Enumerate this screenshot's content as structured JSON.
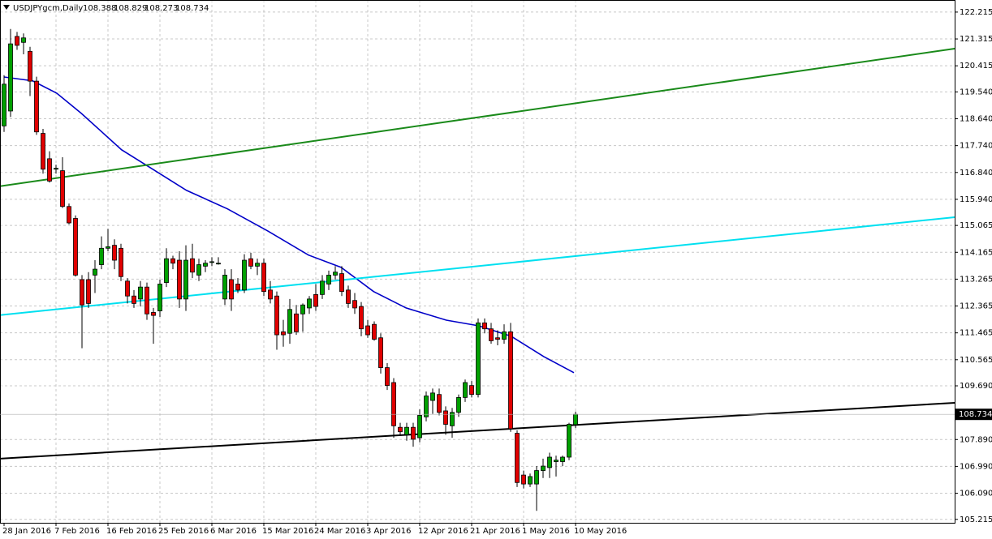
{
  "chart_data": {
    "type": "candlestick",
    "title": "USDJPYgcm,Daily",
    "categories": [
      "28 Jan 2016",
      null,
      null,
      null,
      null,
      null,
      null,
      null,
      "7 Feb 2016",
      null,
      null,
      null,
      null,
      null,
      null,
      null,
      "16 Feb 2016",
      null,
      null,
      null,
      null,
      null,
      null,
      null,
      "25 Feb 2016",
      null,
      null,
      null,
      null,
      null,
      null,
      null,
      "6 Mar 2016",
      null,
      null,
      null,
      null,
      null,
      null,
      null,
      "15 Mar 2016",
      null,
      null,
      null,
      null,
      null,
      null,
      null,
      "24 Mar 2016",
      null,
      null,
      null,
      null,
      null,
      null,
      null,
      "3 Apr 2016",
      null,
      null,
      null,
      null,
      null,
      null,
      null,
      "12 Apr 2016",
      null,
      null,
      null,
      null,
      null,
      null,
      null,
      "21 Apr 2016",
      null,
      null,
      null,
      null,
      null,
      null,
      null,
      "1 May 2016",
      null,
      null,
      null,
      null,
      null,
      null,
      null,
      "10 May 2016"
    ],
    "open": [
      118.4,
      118.9,
      121.4,
      121.2,
      120.9,
      119.9,
      118.15,
      117.3,
      116.95,
      116.9,
      115.7,
      115.3,
      113.25,
      113.25,
      113.4,
      113.75,
      114.3,
      114.4,
      114.3,
      113.2,
      112.7,
      112.6,
      113.0,
      112.15,
      112.2,
      113.15,
      113.95,
      113.9,
      112.6,
      113.95,
      113.4,
      113.7,
      113.85,
      113.8,
      112.6,
      113.25,
      113.1,
      112.9,
      113.95,
      113.7,
      113.8,
      112.9,
      112.7,
      111.5,
      111.45,
      112.1,
      112.1,
      112.3,
      112.75,
      112.75,
      113.1,
      113.4,
      113.45,
      112.9,
      112.55,
      112.35,
      111.7,
      111.75,
      111.3,
      110.3,
      109.8,
      108.3,
      108.05,
      108.3,
      107.95,
      108.65,
      109.2,
      109.4,
      108.85,
      108.35,
      108.8,
      109.3,
      109.7,
      109.4,
      111.8,
      111.6,
      111.3,
      111.25,
      111.5,
      108.1,
      106.7,
      106.4,
      106.4,
      106.85,
      106.95,
      107.15,
      107.15,
      107.3,
      108.388
    ],
    "high": [
      120.1,
      121.65,
      121.55,
      121.5,
      121.05,
      120.05,
      118.3,
      117.55,
      117.1,
      117.35,
      115.8,
      115.4,
      113.4,
      113.5,
      113.9,
      114.7,
      114.95,
      114.6,
      114.45,
      113.3,
      112.9,
      113.2,
      113.15,
      112.3,
      113.25,
      114.3,
      114.05,
      114.2,
      114.4,
      114.45,
      113.95,
      113.9,
      114.0,
      114.0,
      113.6,
      113.6,
      113.3,
      114.1,
      114.15,
      113.95,
      113.95,
      113.2,
      112.85,
      111.9,
      112.6,
      112.4,
      112.45,
      112.7,
      113.1,
      113.4,
      113.55,
      113.7,
      113.7,
      113.05,
      112.8,
      112.5,
      111.9,
      111.85,
      111.45,
      110.45,
      109.95,
      108.45,
      108.45,
      108.45,
      108.9,
      109.5,
      109.6,
      109.6,
      109.0,
      108.95,
      109.4,
      109.9,
      109.85,
      111.95,
      111.95,
      111.8,
      111.55,
      111.75,
      111.8,
      108.2,
      106.85,
      106.75,
      107.0,
      107.25,
      107.45,
      107.35,
      107.35,
      108.45,
      108.829
    ],
    "low": [
      118.2,
      118.7,
      120.95,
      120.8,
      119.4,
      118.1,
      116.8,
      116.5,
      116.8,
      115.65,
      115.1,
      113.35,
      110.95,
      112.3,
      112.8,
      113.6,
      114.2,
      113.6,
      113.2,
      112.45,
      112.3,
      112.35,
      111.9,
      111.1,
      112.0,
      113.0,
      113.6,
      112.3,
      112.2,
      113.3,
      113.2,
      113.5,
      113.7,
      113.75,
      112.4,
      112.2,
      112.8,
      112.8,
      113.6,
      113.4,
      112.7,
      112.45,
      110.9,
      111.0,
      111.1,
      111.4,
      111.5,
      112.1,
      112.2,
      112.6,
      112.9,
      113.25,
      112.7,
      112.3,
      112.1,
      111.35,
      111.3,
      111.2,
      110.1,
      109.55,
      107.95,
      108.05,
      107.85,
      107.65,
      107.8,
      108.5,
      108.75,
      108.7,
      108.05,
      107.95,
      108.65,
      109.15,
      109.3,
      109.3,
      111.45,
      111.1,
      111.05,
      111.1,
      108.15,
      106.3,
      106.25,
      106.3,
      105.5,
      106.6,
      106.6,
      106.65,
      107.0,
      107.2,
      108.273
    ],
    "close": [
      119.8,
      121.15,
      121.1,
      121.35,
      119.9,
      118.2,
      116.95,
      116.55,
      116.98,
      115.7,
      115.15,
      113.4,
      112.4,
      112.45,
      113.6,
      114.3,
      114.35,
      113.9,
      113.35,
      112.7,
      112.45,
      113.0,
      112.1,
      112.05,
      113.1,
      113.95,
      113.8,
      112.6,
      113.9,
      113.5,
      113.75,
      113.8,
      113.85,
      113.8,
      113.4,
      112.6,
      112.9,
      113.9,
      113.7,
      113.8,
      112.85,
      112.6,
      111.4,
      111.4,
      112.25,
      111.5,
      112.4,
      112.6,
      112.35,
      113.2,
      113.4,
      113.5,
      112.85,
      112.45,
      112.3,
      111.6,
      111.4,
      111.25,
      110.3,
      109.7,
      108.35,
      108.15,
      108.3,
      107.9,
      108.7,
      109.35,
      109.45,
      108.8,
      108.4,
      108.8,
      109.3,
      109.8,
      109.4,
      111.8,
      111.6,
      111.2,
      111.25,
      111.5,
      108.25,
      106.45,
      106.4,
      106.65,
      106.85,
      107.0,
      107.3,
      107.2,
      107.3,
      108.4,
      108.734
    ],
    "up_color": "#00a000",
    "down_color": "#e00000",
    "ylim": [
      105.1,
      122.62
    ],
    "yticks": [
      122.215,
      121.315,
      120.415,
      {
        "value": 119.54,
        "label": "119.540"
      },
      {
        "value": 118.64,
        "label": "118.640"
      },
      {
        "value": 117.74,
        "label": "117.740"
      },
      {
        "value": 116.84,
        "label": "116.840"
      },
      {
        "value": 115.94,
        "label": "115.940"
      },
      115.065,
      114.165,
      113.265,
      112.365,
      111.465,
      110.565,
      {
        "value": 109.69,
        "label": "109.690"
      },
      {
        "value": 107.89,
        "label": "107.890"
      },
      {
        "value": 106.99,
        "label": "106.990"
      },
      {
        "value": 106.09,
        "label": "106.090"
      },
      105.215
    ],
    "grid": true,
    "overlays": [
      {
        "color": "#0000c8",
        "x": [
          0,
          4.4,
          8.1,
          11.9,
          18.1,
          23.1,
          28.1,
          34.4,
          40.6,
          46.9,
          51.9,
          56.9,
          61.9,
          68.1,
          73.1,
          78.1,
          83.1,
          87.75
        ],
        "values": [
          120.04,
          119.91,
          119.5,
          118.82,
          117.6,
          116.92,
          116.24,
          115.62,
          114.88,
          114.07,
          113.66,
          112.85,
          112.3,
          111.89,
          111.7,
          111.35,
          110.67,
          110.13
        ]
      },
      {
        "color": "#1a8a1a",
        "x": [
          -0.625,
          146.375
        ],
        "values": [
          116.38,
          120.99
        ]
      },
      {
        "color": "#00e0f0",
        "x": [
          -0.625,
          146.375
        ],
        "values": [
          112.06,
          115.34
        ]
      },
      {
        "color": "#000000",
        "x": [
          -0.625,
          146.375
        ],
        "values": [
          107.25,
          109.12
        ]
      }
    ]
  }
}
